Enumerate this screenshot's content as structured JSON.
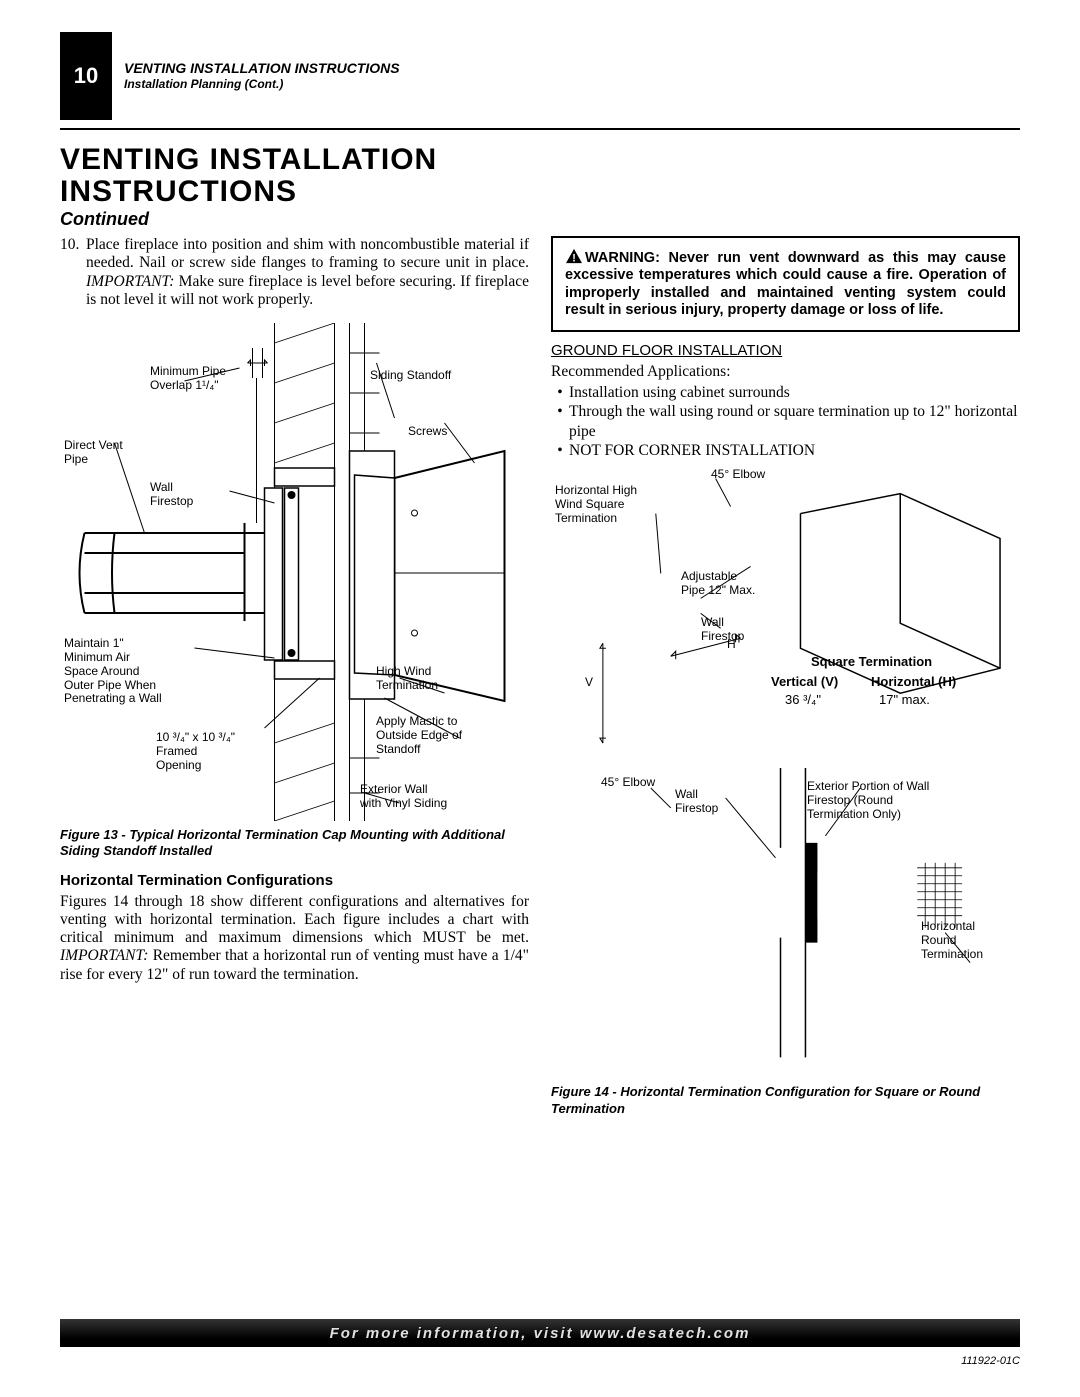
{
  "page_number": "10",
  "header_title": "VENTING INSTALLATION INSTRUCTIONS",
  "header_sub": "Installation Planning (Cont.)",
  "main_title_l1": "VENTING INSTALLATION",
  "main_title_l2": "INSTRUCTIONS",
  "continued": "Continued",
  "step": {
    "num": "10.",
    "text_a": "Place fireplace into position and shim with noncombustible material if needed. Nail or screw side flanges to framing to secure unit in place. ",
    "important": "IMPORTANT:",
    "text_b": " Make sure fireplace is level before securing. If fireplace is not level it will not work properly."
  },
  "fig13": {
    "labels": {
      "min_pipe": "Minimum Pipe\nOverlap 1¹/₄\"",
      "siding": "Siding Standoff",
      "screws": "Screws",
      "dvpipe": "Direct Vent\nPipe",
      "wallfs": "Wall\nFirestop",
      "maintain": "Maintain 1\"\nMinimum Air\nSpace Around\nOuter Pipe When\nPenetrating a Wall",
      "highwind": "High Wind\nTermination",
      "mastic": "Apply Mastic to\nOutside Edge of\nStandoff",
      "framed": "10 ³/₄\" x 10 ³/₄\"\nFramed\nOpening",
      "extwall": "Exterior Wall\nwith Vinyl Siding"
    },
    "caption": "Figure 13 - Typical Horizontal Termination Cap Mounting with Additional Siding Standoff Installed"
  },
  "htc_heading": "Horizontal Termination Configurations",
  "htc_text_a": "Figures 14 through 18 show different configurations and alternatives for venting with horizontal termination. Each figure includes a chart with critical minimum and maximum dimensions which MUST be met. ",
  "htc_important": "IMPORTANT:",
  "htc_text_b": " Remember that a horizontal run of venting must have a 1/4\" rise for every 12\" of run toward the termination.",
  "warning": {
    "text": "WARNING: Never run vent downward as this may cause excessive temperatures which could cause a fire. Operation of improperly installed and maintained venting system could result in serious injury, property damage or loss of life."
  },
  "gfi_heading": "GROUND FLOOR INSTALLATION",
  "rec_apps": "Recommended Applications:",
  "bullets": {
    "b1": "Installation using cabinet surrounds",
    "b2": "Through the wall using round or square termination up to 12\" horizontal pipe",
    "b3": "NOT FOR CORNER INSTALLATION"
  },
  "fig14": {
    "labels": {
      "elbow45a": "45° Elbow",
      "hhws": "Horizontal High\nWind Square\nTermination",
      "adj": "Adjustable\nPipe 12\" Max.",
      "wallfs": "Wall\nFirestop",
      "h": "H",
      "v": "V",
      "sqterm": "Square Termination",
      "vert_h": "Vertical (V)",
      "horiz_h": "Horizontal (H)",
      "vert_v": "36 ³/₄\"",
      "horiz_v": "17\" max.",
      "elbow45b": "45° Elbow",
      "wallfs2": "Wall\nFirestop",
      "extport": "Exterior Portion of Wall\nFirestop (Round\nTermination Only)",
      "hrt": "Horizontal\nRound\nTermination"
    },
    "caption": "Figure 14 - Horizontal Termination Configuration for Square or Round Termination"
  },
  "footer": "For more information, visit www.desatech.com",
  "doc_id": "111922-01C"
}
